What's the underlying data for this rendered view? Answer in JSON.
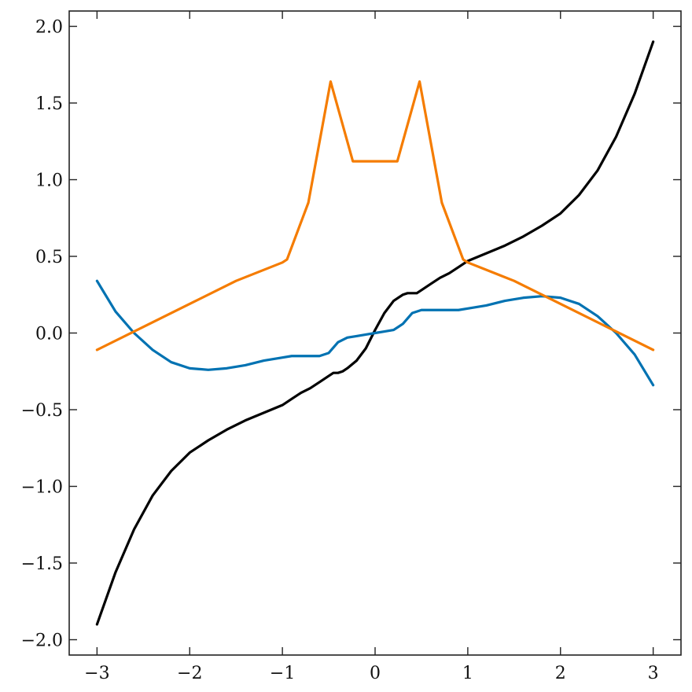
{
  "chart_data": {
    "type": "line",
    "title": "",
    "xlabel": "",
    "ylabel": "",
    "xlim": [
      -3.3,
      3.3
    ],
    "ylim": [
      -2.1,
      2.1
    ],
    "grid": false,
    "xticks": [
      -3,
      -2,
      -1,
      0,
      1,
      2,
      3
    ],
    "xtick_labels": [
      "−3",
      "−2",
      "−1",
      "0",
      "1",
      "2",
      "3"
    ],
    "yticks": [
      -2.0,
      -1.5,
      -1.0,
      -0.5,
      0.0,
      0.5,
      1.0,
      1.5,
      2.0
    ],
    "ytick_labels": [
      "−2.0",
      "−1.5",
      "−1.0",
      "−0.5",
      "0.0",
      "0.5",
      "1.0",
      "1.5",
      "2.0"
    ],
    "series": [
      {
        "color": "#000000",
        "x": [
          -3.0,
          -2.8,
          -2.6,
          -2.4,
          -2.2,
          -2.0,
          -1.8,
          -1.6,
          -1.4,
          -1.2,
          -1.0,
          -0.9,
          -0.8,
          -0.7,
          -0.6,
          -0.5,
          -0.45,
          -0.4,
          -0.35,
          -0.3,
          -0.2,
          -0.1,
          0.0,
          0.1,
          0.2,
          0.3,
          0.35,
          0.4,
          0.45,
          0.5,
          0.6,
          0.7,
          0.8,
          0.9,
          1.0,
          1.2,
          1.4,
          1.6,
          1.8,
          2.0,
          2.2,
          2.4,
          2.6,
          2.8,
          3.0
        ],
        "y": [
          -1.9,
          -1.56,
          -1.28,
          -1.06,
          -0.9,
          -0.78,
          -0.7,
          -0.63,
          -0.57,
          -0.52,
          -0.47,
          -0.43,
          -0.39,
          -0.36,
          -0.32,
          -0.28,
          -0.26,
          -0.26,
          -0.25,
          -0.23,
          -0.18,
          -0.1,
          0.02,
          0.13,
          0.21,
          0.25,
          0.26,
          0.26,
          0.26,
          0.28,
          0.32,
          0.36,
          0.39,
          0.43,
          0.47,
          0.52,
          0.57,
          0.63,
          0.7,
          0.78,
          0.9,
          1.06,
          1.28,
          1.56,
          1.9
        ]
      },
      {
        "color": "#0072B2",
        "x": [
          -3.0,
          -2.8,
          -2.6,
          -2.4,
          -2.2,
          -2.0,
          -1.8,
          -1.6,
          -1.4,
          -1.2,
          -1.0,
          -0.9,
          -0.8,
          -0.7,
          -0.6,
          -0.5,
          -0.4,
          -0.3,
          -0.2,
          -0.1,
          0.0,
          0.1,
          0.2,
          0.3,
          0.4,
          0.5,
          0.6,
          0.7,
          0.8,
          0.9,
          1.0,
          1.2,
          1.4,
          1.6,
          1.8,
          2.0,
          2.2,
          2.4,
          2.6,
          2.8,
          3.0
        ],
        "y": [
          0.34,
          0.14,
          0.0,
          -0.11,
          -0.19,
          -0.23,
          -0.24,
          -0.23,
          -0.21,
          -0.18,
          -0.16,
          -0.15,
          -0.15,
          -0.15,
          -0.15,
          -0.13,
          -0.06,
          -0.03,
          -0.02,
          -0.01,
          0.0,
          0.01,
          0.02,
          0.06,
          0.13,
          0.15,
          0.15,
          0.15,
          0.15,
          0.15,
          0.16,
          0.18,
          0.21,
          0.23,
          0.24,
          0.23,
          0.19,
          0.11,
          0.0,
          -0.14,
          -0.34
        ]
      },
      {
        "color": "#F57C00",
        "x": [
          -3.0,
          -2.5,
          -2.0,
          -1.5,
          -1.0,
          -0.95,
          -0.72,
          -0.48,
          -0.24,
          0.0,
          0.24,
          0.48,
          0.72,
          0.95,
          1.0,
          1.5,
          2.0,
          2.5,
          3.0
        ],
        "y": [
          -0.11,
          0.04,
          0.19,
          0.34,
          0.46,
          0.48,
          0.85,
          1.64,
          1.12,
          1.12,
          1.12,
          1.64,
          0.85,
          0.48,
          0.46,
          0.34,
          0.19,
          0.04,
          -0.11
        ]
      }
    ]
  }
}
